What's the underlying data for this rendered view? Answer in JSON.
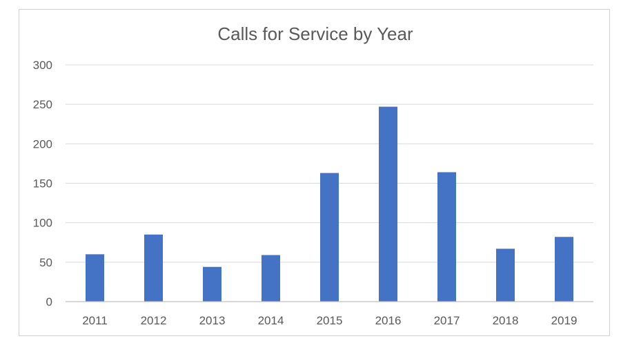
{
  "chart_data": {
    "type": "bar",
    "title": "Calls for Service by Year",
    "categories": [
      "2011",
      "2012",
      "2013",
      "2014",
      "2015",
      "2016",
      "2017",
      "2018",
      "2019"
    ],
    "series": [
      {
        "values": [
          60,
          85,
          44,
          59,
          163,
          247,
          164,
          67,
          82
        ]
      }
    ],
    "ylim": [
      0,
      300
    ],
    "yticks": [
      "0",
      "50",
      "100",
      "150",
      "200",
      "250",
      "300"
    ],
    "xlabel": "",
    "ylabel": "",
    "grid": true,
    "legend": "none",
    "bar_color": "#4472C4"
  }
}
